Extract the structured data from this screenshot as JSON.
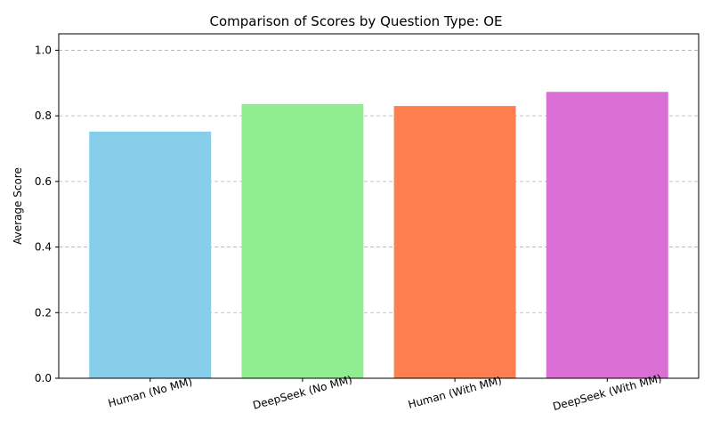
{
  "chart_data": {
    "type": "bar",
    "title": "Comparison of Scores by Question Type: OE",
    "xlabel": "",
    "ylabel": "Average Score",
    "categories": [
      "Human (No MM)",
      "DeepSeek (No MM)",
      "Human (With MM)",
      "DeepSeek (With MM)"
    ],
    "values": [
      0.752,
      0.836,
      0.83,
      0.873
    ],
    "colors": [
      "#87ceeb",
      "#90ee90",
      "#ff7f50",
      "#da70d6"
    ],
    "ylim": [
      0,
      1.05
    ],
    "yticks": [
      "0.0",
      "0.2",
      "0.4",
      "0.6",
      "0.8",
      "1.0"
    ],
    "grid": "y-dashed",
    "x_tick_rotation_deg": 15
  }
}
